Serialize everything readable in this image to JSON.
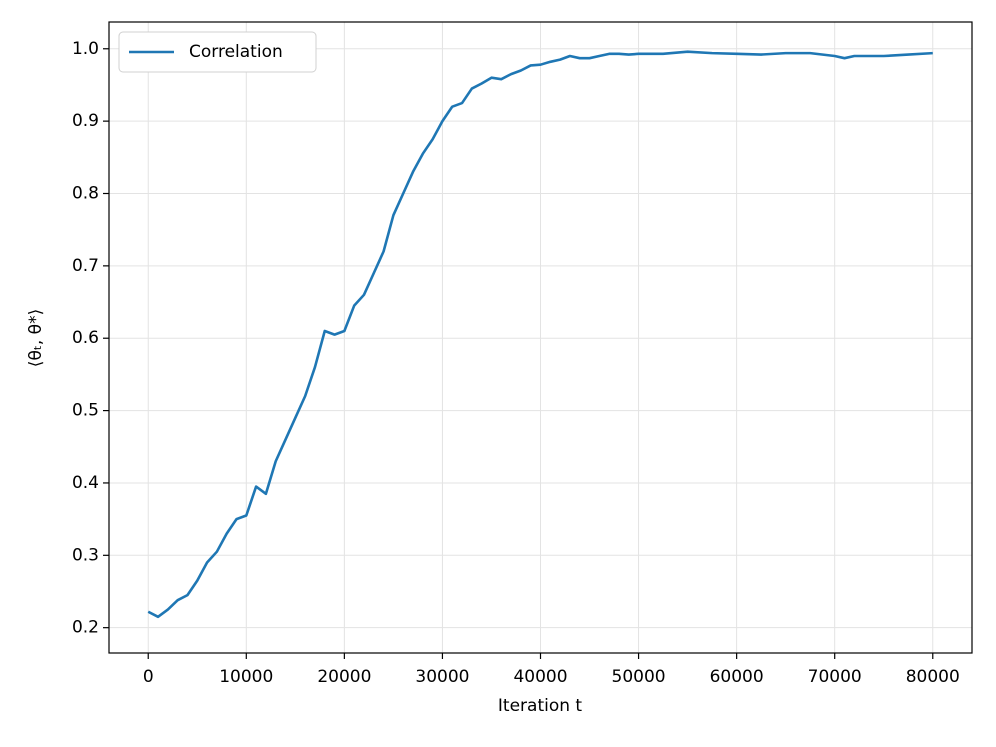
{
  "chart_data": {
    "type": "line",
    "xlabel": "Iteration t",
    "ylabel": "⟨θₜ, θ*⟩",
    "x": [
      0,
      1000,
      2000,
      3000,
      4000,
      5000,
      6000,
      7000,
      8000,
      9000,
      10000,
      11000,
      12000,
      13000,
      14000,
      15000,
      16000,
      17000,
      18000,
      19000,
      20000,
      21000,
      22000,
      23000,
      24000,
      25000,
      26000,
      27000,
      28000,
      29000,
      30000,
      31000,
      32000,
      33000,
      34000,
      35000,
      36000,
      37000,
      38000,
      39000,
      40000,
      41000,
      42000,
      43000,
      44000,
      45000,
      46000,
      47000,
      48000,
      49000,
      50000,
      52500,
      55000,
      57500,
      60000,
      62500,
      65000,
      67500,
      70000,
      71000,
      72000,
      75000,
      77500,
      80000
    ],
    "series": [
      {
        "name": "Correlation",
        "color": "#1f77b4",
        "values": [
          0.222,
          0.215,
          0.225,
          0.238,
          0.245,
          0.265,
          0.29,
          0.305,
          0.33,
          0.35,
          0.355,
          0.395,
          0.385,
          0.43,
          0.46,
          0.49,
          0.52,
          0.56,
          0.61,
          0.605,
          0.61,
          0.645,
          0.66,
          0.69,
          0.72,
          0.77,
          0.8,
          0.83,
          0.855,
          0.875,
          0.9,
          0.92,
          0.925,
          0.945,
          0.952,
          0.96,
          0.958,
          0.965,
          0.97,
          0.977,
          0.978,
          0.982,
          0.985,
          0.99,
          0.987,
          0.987,
          0.99,
          0.993,
          0.993,
          0.992,
          0.993,
          0.993,
          0.996,
          0.994,
          0.993,
          0.992,
          0.994,
          0.994,
          0.99,
          0.987,
          0.99,
          0.99,
          0.992,
          0.994
        ]
      }
    ],
    "xlim": [
      -4000,
      84000
    ],
    "ylim": [
      0.165,
      1.037
    ],
    "xticks": [
      0,
      10000,
      20000,
      30000,
      40000,
      50000,
      60000,
      70000,
      80000
    ],
    "yticks": [
      0.2,
      0.3,
      0.4,
      0.5,
      0.6,
      0.7,
      0.8,
      0.9,
      {
        "value": 1,
        "label": "1.0"
      }
    ],
    "grid": true,
    "legend": "upper-left"
  }
}
